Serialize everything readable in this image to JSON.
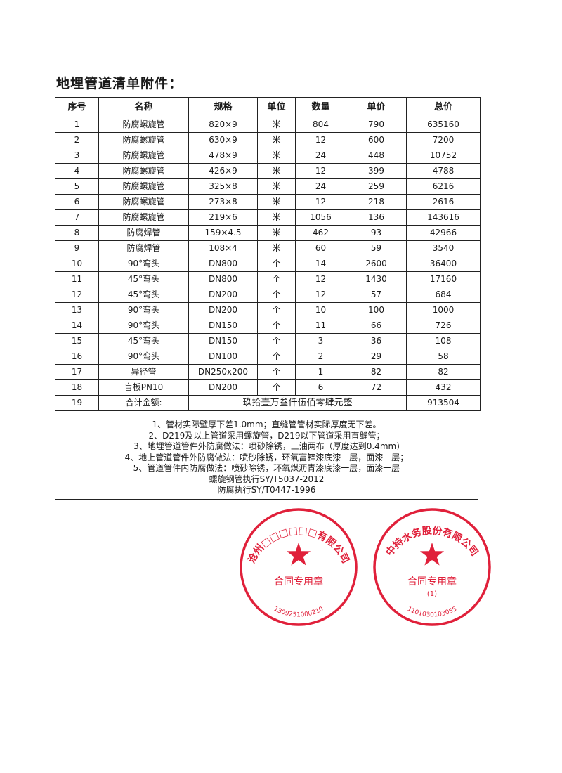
{
  "title": "地埋管道清单附件：",
  "table": {
    "headers": [
      "序号",
      "名称",
      "规格",
      "单位",
      "数量",
      "单价",
      "总价"
    ],
    "rows": [
      [
        "1",
        "防腐螺旋管",
        "820×9",
        "米",
        "804",
        "790",
        "635160"
      ],
      [
        "2",
        "防腐螺旋管",
        "630×9",
        "米",
        "12",
        "600",
        "7200"
      ],
      [
        "3",
        "防腐螺旋管",
        "478×9",
        "米",
        "24",
        "448",
        "10752"
      ],
      [
        "4",
        "防腐螺旋管",
        "426×9",
        "米",
        "12",
        "399",
        "4788"
      ],
      [
        "5",
        "防腐螺旋管",
        "325×8",
        "米",
        "24",
        "259",
        "6216"
      ],
      [
        "6",
        "防腐螺旋管",
        "273×8",
        "米",
        "12",
        "218",
        "2616"
      ],
      [
        "7",
        "防腐螺旋管",
        "219×6",
        "米",
        "1056",
        "136",
        "143616"
      ],
      [
        "8",
        "防腐焊管",
        "159×4.5",
        "米",
        "462",
        "93",
        "42966"
      ],
      [
        "9",
        "防腐焊管",
        "108×4",
        "米",
        "60",
        "59",
        "3540"
      ],
      [
        "10",
        "90°弯头",
        "DN800",
        "个",
        "14",
        "2600",
        "36400"
      ],
      [
        "11",
        "45°弯头",
        "DN800",
        "个",
        "12",
        "1430",
        "17160"
      ],
      [
        "12",
        "45°弯头",
        "DN200",
        "个",
        "12",
        "57",
        "684"
      ],
      [
        "13",
        "90°弯头",
        "DN200",
        "个",
        "10",
        "100",
        "1000"
      ],
      [
        "14",
        "90°弯头",
        "DN150",
        "个",
        "11",
        "66",
        "726"
      ],
      [
        "15",
        "45°弯头",
        "DN150",
        "个",
        "3",
        "36",
        "108"
      ],
      [
        "16",
        "90°弯头",
        "DN100",
        "个",
        "2",
        "29",
        "58"
      ],
      [
        "17",
        "异径管",
        "DN250x200",
        "个",
        "1",
        "82",
        "82"
      ],
      [
        "18",
        "盲板PN10",
        "DN200",
        "个",
        "6",
        "72",
        "432"
      ]
    ],
    "total_row": {
      "index": "19",
      "label": "合计金额:",
      "amount_words": "玖拾壹万叁仟伍佰零肆元整",
      "total": "913504"
    }
  },
  "notes": [
    "1、管材实际壁厚下差1.0mm；直缝管管材实际厚度无下差。",
    "2、D219及以上管道采用螺旋管，D219以下管道采用直缝管；",
    "3、地埋管道管件外防腐做法：喷砂除锈，三油两布（厚度达到0.4mm)",
    "4、地上管道管件外防腐做法：喷砂除锈，环氧富锌漆底漆一层，面漆一层；",
    "5、管道管件内防腐做法：喷砂除锈，环氧煤沥青漆底漆一层，面漆一层",
    "螺旋钢管执行SY/T5037-2012",
    "防腐执行SY/T0447-1996"
  ],
  "stamps": [
    {
      "ring_text": "沧州□□□□□□有限公司",
      "center_text": "合同专用章",
      "code": "1309251000210",
      "color": "#e0203a"
    },
    {
      "ring_text": "中持水务股份有限公司",
      "center_text": "合同专用章",
      "sub_text": "(1)",
      "code": "1101030103055",
      "color": "#e0203a"
    }
  ]
}
